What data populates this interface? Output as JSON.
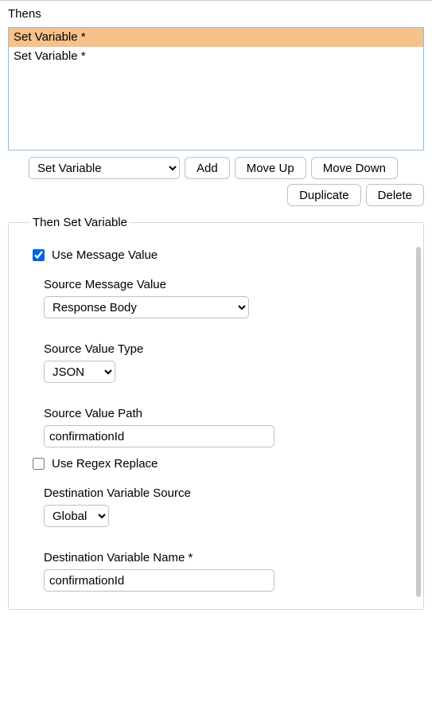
{
  "section_title": "Thens",
  "list": {
    "items": [
      {
        "label": "Set Variable *",
        "selected": true
      },
      {
        "label": "Set Variable *",
        "selected": false
      }
    ]
  },
  "controls": {
    "type_select_value": "Set Variable",
    "add": "Add",
    "move_up": "Move Up",
    "move_down": "Move Down",
    "duplicate": "Duplicate",
    "delete": "Delete"
  },
  "group": {
    "legend": "Then Set Variable",
    "use_message_value": {
      "label": "Use Message Value",
      "checked": true
    },
    "source_message_value": {
      "label": "Source Message Value",
      "value": "Response Body"
    },
    "source_value_type": {
      "label": "Source Value Type",
      "value": "JSON"
    },
    "source_value_path": {
      "label": "Source Value Path",
      "value": "confirmationId"
    },
    "use_regex_replace": {
      "label": "Use Regex Replace",
      "checked": false
    },
    "dest_var_source": {
      "label": "Destination Variable Source",
      "value": "Global"
    },
    "dest_var_name": {
      "label": "Destination Variable Name *",
      "value": "confirmationId"
    }
  },
  "colors": {
    "selection_bg": "#f7c28a",
    "listbox_border": "#8fbce8",
    "checkbox_accent": "#0063e1"
  }
}
